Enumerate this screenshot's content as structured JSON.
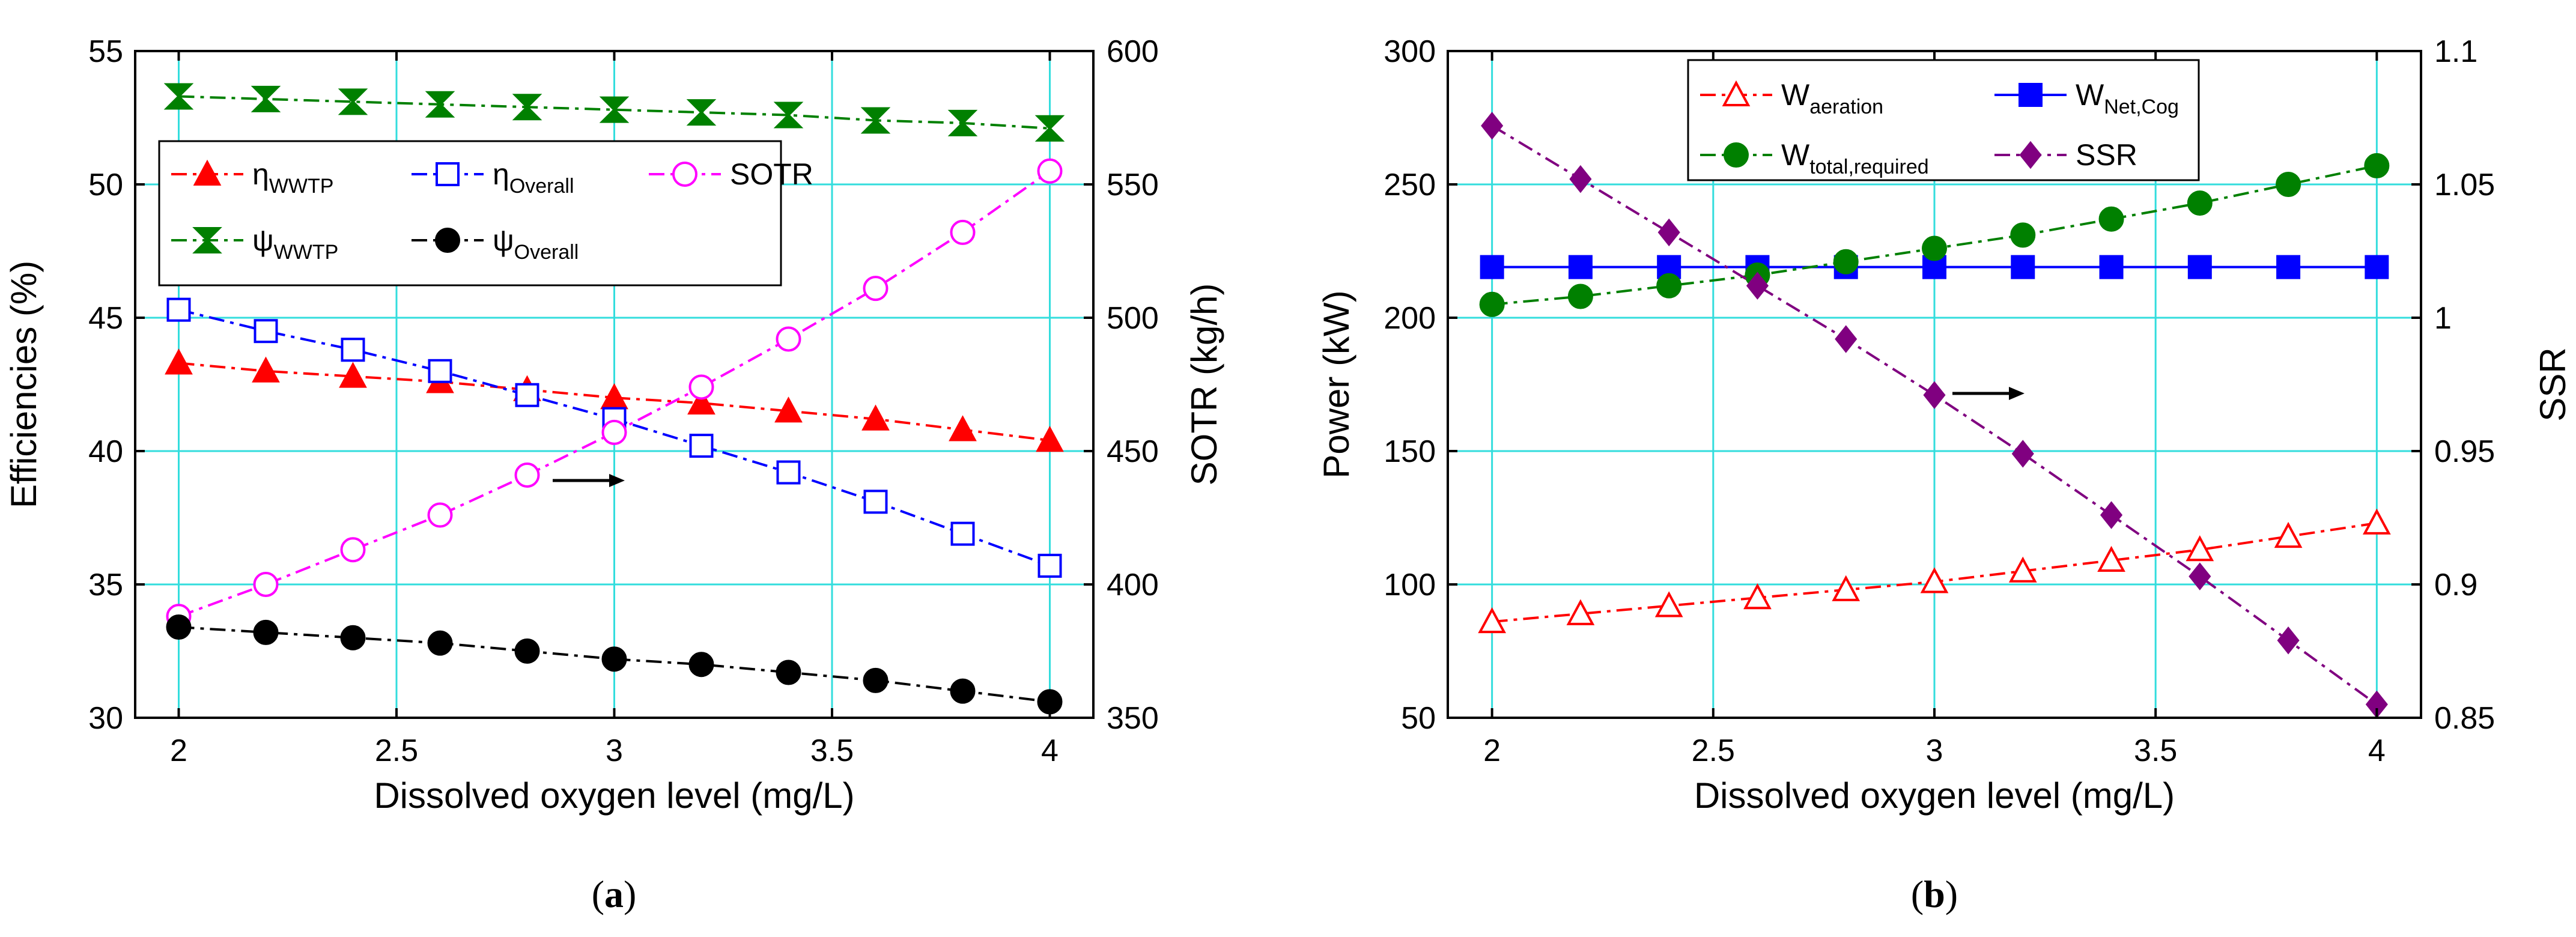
{
  "chart_data": [
    {
      "type": "line",
      "panel_label": "a",
      "x": [
        2,
        2.2,
        2.4,
        2.6,
        2.8,
        3,
        3.2,
        3.4,
        3.6,
        3.8,
        4
      ],
      "xlabel": "Dissolved oxygen level (mg/L)",
      "ylabel": "Efficiencies (%)",
      "y2label": "SOTR (kg/h)",
      "xlim": [
        1.9,
        4.1
      ],
      "ylim": [
        30,
        55
      ],
      "y2lim": [
        350,
        600
      ],
      "xticks": [
        "2",
        "2.5",
        "3",
        "3.5",
        "4"
      ],
      "yticks": [
        "30",
        "35",
        "40",
        "45",
        "50",
        "55"
      ],
      "y2ticks": [
        "350",
        "400",
        "450",
        "500",
        "550",
        "600"
      ],
      "grid": true,
      "legend": "upper-center",
      "series": [
        {
          "name": "η",
          "sub": "WWTP",
          "axis": "left",
          "color": "#ff0000",
          "marker": "triangle",
          "filled": true,
          "dash": "dashdot",
          "values": [
            43.3,
            43.0,
            42.8,
            42.6,
            42.3,
            42.0,
            41.8,
            41.5,
            41.2,
            40.8,
            40.4
          ]
        },
        {
          "name": "η",
          "sub": "Overall",
          "axis": "left",
          "color": "#0000ff",
          "marker": "square",
          "filled": false,
          "dash": "dashdot",
          "values": [
            45.3,
            44.5,
            43.8,
            43.0,
            42.1,
            41.2,
            40.2,
            39.2,
            38.1,
            36.9,
            35.7
          ]
        },
        {
          "name": "SOTR",
          "sub": "",
          "axis": "right",
          "color": "#ff00ff",
          "marker": "circle",
          "filled": false,
          "dash": "dashdot",
          "values": [
            388,
            400,
            413,
            426,
            441,
            457,
            474,
            492,
            511,
            532,
            555
          ]
        },
        {
          "name": "ψ",
          "sub": "WWTP",
          "axis": "left",
          "color": "#008000",
          "marker": "bowtie",
          "filled": true,
          "dash": "dashdot",
          "values": [
            53.3,
            53.2,
            53.1,
            53.0,
            52.9,
            52.8,
            52.7,
            52.6,
            52.4,
            52.3,
            52.1
          ]
        },
        {
          "name": "ψ",
          "sub": "Overall",
          "axis": "left",
          "color": "#000000",
          "marker": "circle",
          "filled": true,
          "dash": "dashdot",
          "values": [
            33.4,
            33.2,
            33.0,
            32.8,
            32.5,
            32.2,
            32.0,
            31.7,
            31.4,
            31.0,
            30.6
          ]
        }
      ],
      "annotation": {
        "type": "arrow",
        "direction": "right",
        "points_to": "y2"
      }
    },
    {
      "type": "line",
      "panel_label": "b",
      "x": [
        2,
        2.2,
        2.4,
        2.6,
        2.8,
        3,
        3.2,
        3.4,
        3.6,
        3.8,
        4
      ],
      "xlabel": "Dissolved oxygen level (mg/L)",
      "ylabel": "Power (kW)",
      "y2label": "SSR",
      "xlim": [
        1.9,
        4.1
      ],
      "ylim": [
        50,
        300
      ],
      "y2lim": [
        0.85,
        1.1
      ],
      "xticks": [
        "2",
        "2.5",
        "3",
        "3.5",
        "4"
      ],
      "yticks": [
        "50",
        "100",
        "150",
        "200",
        "250",
        "300"
      ],
      "y2ticks": [
        "0.85",
        "0.9",
        "0.95",
        "1",
        "1.05",
        "1.1"
      ],
      "grid": true,
      "legend": "top",
      "series": [
        {
          "name": "W",
          "sub": "aeration",
          "axis": "left",
          "color": "#ff0000",
          "marker": "triangle",
          "filled": false,
          "dash": "dashdot",
          "values": [
            86,
            89,
            92,
            95,
            98,
            101,
            105,
            109,
            113,
            118,
            123
          ]
        },
        {
          "name": "W",
          "sub": "Net,Cog",
          "axis": "left",
          "color": "#0000ff",
          "marker": "square",
          "filled": true,
          "dash": "solid",
          "values": [
            219,
            219,
            219,
            219,
            219,
            219,
            219,
            219,
            219,
            219,
            219
          ]
        },
        {
          "name": "W",
          "sub": "total,required",
          "axis": "left",
          "color": "#008000",
          "marker": "circle",
          "filled": true,
          "dash": "dashdot",
          "values": [
            205,
            208,
            212,
            216,
            221,
            226,
            231,
            237,
            243,
            250,
            257
          ]
        },
        {
          "name": "SSR",
          "sub": "",
          "axis": "right",
          "color": "#800080",
          "marker": "diamond",
          "filled": true,
          "dash": "dashdot",
          "values": [
            1.072,
            1.052,
            1.032,
            1.012,
            0.992,
            0.971,
            0.949,
            0.926,
            0.903,
            0.879,
            0.855
          ]
        }
      ],
      "annotation": {
        "type": "arrow",
        "direction": "right",
        "points_to": "y2"
      }
    }
  ]
}
